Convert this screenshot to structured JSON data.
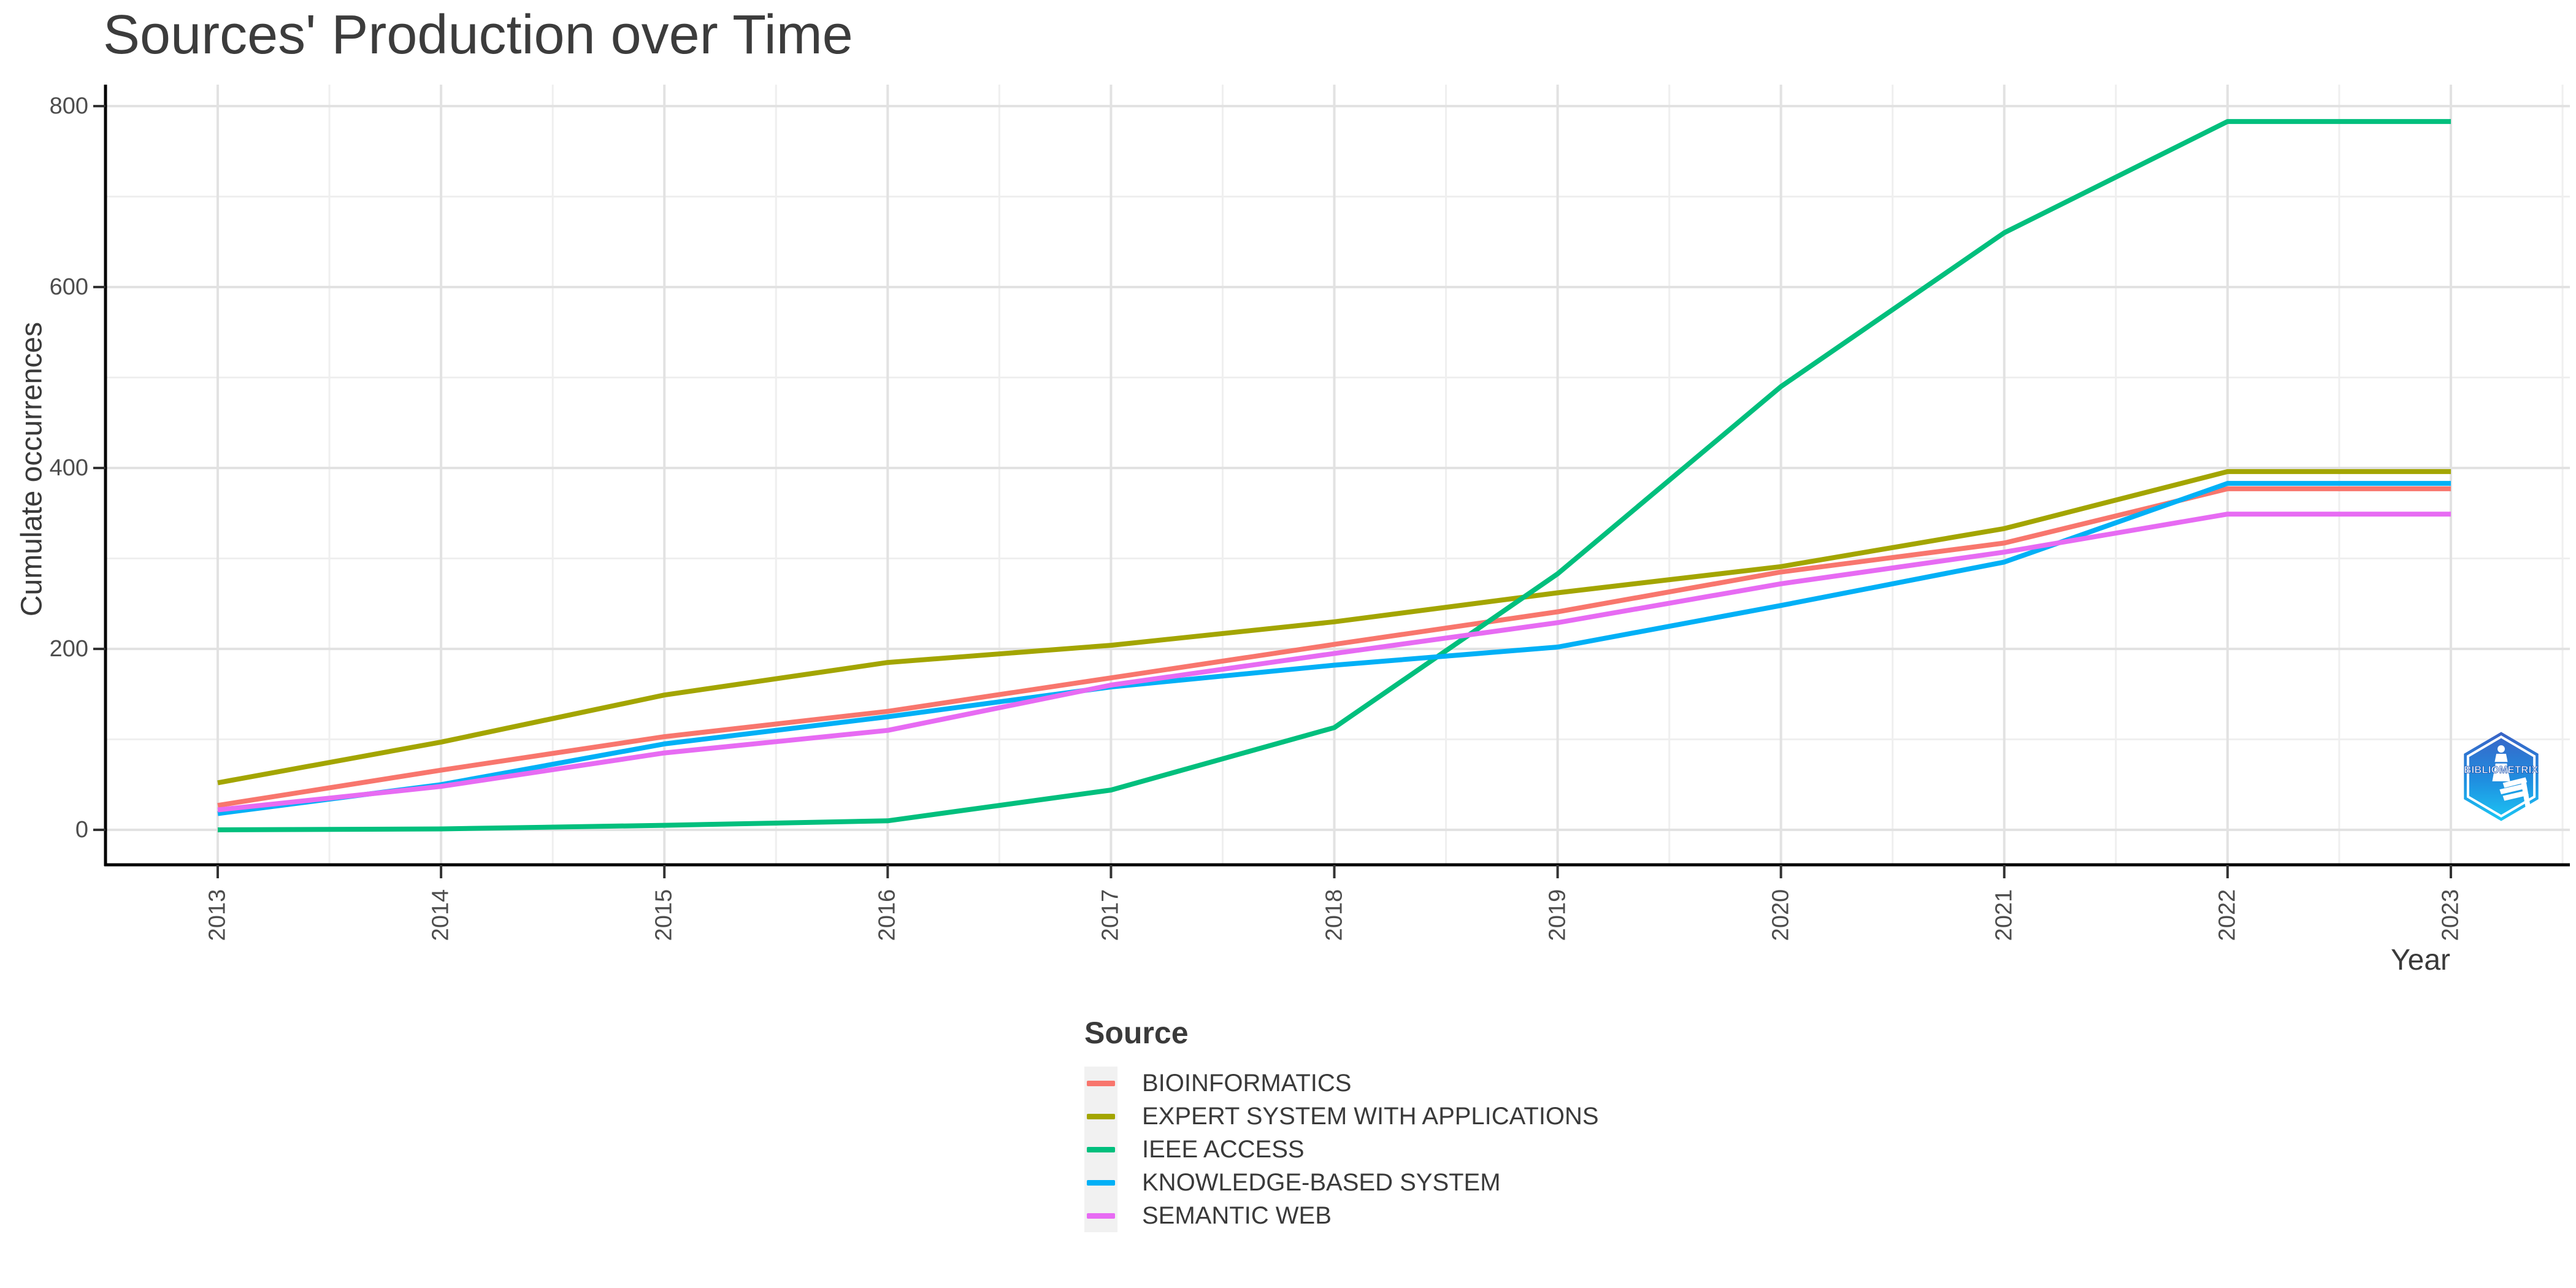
{
  "title": "Sources' Production over Time",
  "axes": {
    "x_label": "Year",
    "y_label": "Cumulate occurrences"
  },
  "legend": {
    "title": "Source"
  },
  "logo": {
    "text": "BIBLIOMETRIX"
  },
  "colors": {
    "axis_text": "#4d4d4d",
    "grid_major": "#e2e2e2",
    "grid_minor": "#efefef",
    "axis_line": "#000000"
  },
  "chart_data": {
    "type": "line",
    "title": "Sources' Production over Time",
    "xlabel": "Year",
    "ylabel": "Cumulate occurrences",
    "x": [
      2013,
      2014,
      2015,
      2016,
      2017,
      2018,
      2019,
      2020,
      2021,
      2022,
      2023
    ],
    "ylim": [
      0,
      800
    ],
    "y_ticks": [
      0,
      200,
      400,
      600,
      800
    ],
    "grid": true,
    "legend_position": "bottom",
    "series": [
      {
        "name": "BIOINFORMATICS",
        "color": "#F8766D",
        "values": [
          27,
          66,
          103,
          131,
          168,
          205,
          241,
          285,
          317,
          377,
          377
        ]
      },
      {
        "name": "EXPERT SYSTEM WITH APPLICATIONS",
        "color": "#A3A500",
        "values": [
          52,
          97,
          149,
          185,
          204,
          230,
          262,
          291,
          333,
          396,
          396
        ]
      },
      {
        "name": "IEEE ACCESS",
        "color": "#00BF7D",
        "values": [
          0,
          1,
          5,
          10,
          44,
          113,
          283,
          490,
          660,
          783,
          783
        ]
      },
      {
        "name": "KNOWLEDGE-BASED SYSTEM",
        "color": "#00B0F6",
        "values": [
          18,
          50,
          95,
          125,
          158,
          182,
          202,
          248,
          296,
          383,
          383
        ]
      },
      {
        "name": "SEMANTIC WEB",
        "color": "#E76BF3",
        "values": [
          22,
          48,
          85,
          110,
          160,
          195,
          229,
          272,
          307,
          349,
          349
        ]
      }
    ]
  }
}
